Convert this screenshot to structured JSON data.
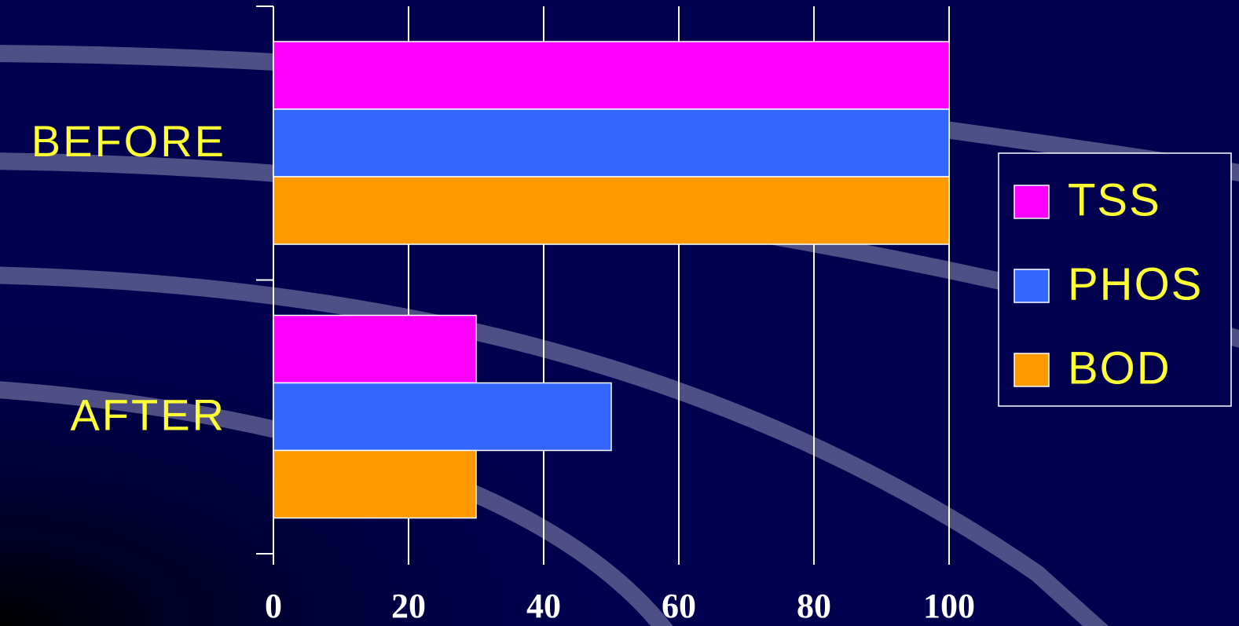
{
  "chart_data": {
    "type": "bar",
    "orientation": "horizontal",
    "title": "",
    "xlabel": "",
    "ylabel": "",
    "categories": [
      "BEFORE",
      "AFTER"
    ],
    "series": [
      {
        "name": "TSS",
        "values": [
          100,
          30
        ],
        "color": "#ff00ff"
      },
      {
        "name": "PHOS",
        "values": [
          100,
          50
        ],
        "color": "#3366ff"
      },
      {
        "name": "BOD",
        "values": [
          100,
          30
        ],
        "color": "#ff9900"
      }
    ],
    "xlim": [
      0,
      100
    ],
    "x_ticks": [
      "0",
      "20",
      "40",
      "60",
      "80",
      "100"
    ],
    "grid": true,
    "legend_position": "right",
    "colors": {
      "background": "#00004f",
      "gridline": "#ffffff",
      "category_text": "#ffff33",
      "tick_text": "#ffffff",
      "legend_text": "#ffff33"
    }
  }
}
